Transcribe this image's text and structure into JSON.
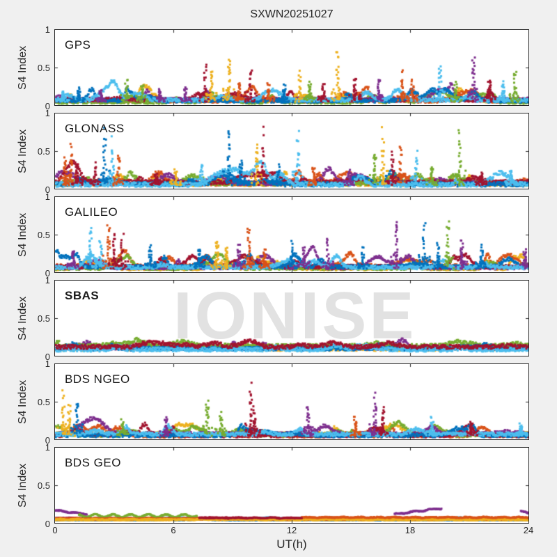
{
  "title": "SXWN20251027",
  "watermark": "IONISE",
  "axis": {
    "xlabel": "UT(h)",
    "ylabel": "S4 Index",
    "xlim": [
      0,
      24
    ],
    "ylim": [
      0,
      1
    ],
    "xtick_labels": [
      "0",
      "6",
      "12",
      "18",
      "24"
    ],
    "ytick_labels": [
      "1",
      "0.5",
      "0"
    ]
  },
  "chart_data": {
    "type": "scatter",
    "title": "SXWN20251027",
    "xlabel": "UT(h)",
    "ylabel": "S4 Index",
    "xlim": [
      0,
      24
    ],
    "ylim": [
      0,
      1
    ],
    "xticks": [
      0,
      6,
      12,
      18,
      24
    ],
    "yticks": [
      0,
      0.5,
      1
    ],
    "grid": false,
    "legend": false,
    "x_unit": "hours UT",
    "palette": [
      "#0072BD",
      "#D95319",
      "#EDB120",
      "#7E2F8E",
      "#77AC30",
      "#4DBEEE",
      "#A2142F"
    ],
    "spike_format": [
      "time_h",
      "s4_peak",
      "palette_index"
    ],
    "segment_format": "t0/t1 hours, v0/v1 S4, c palette index, amp wave amplitude",
    "panels": [
      {
        "label": "GPS",
        "bold": false,
        "baseline": {
          "level": 0.06,
          "bump": 0.12,
          "noise": 0.05
        },
        "spikes": [
          [
            0.4,
            0.18,
            5
          ],
          [
            1.2,
            0.22,
            0
          ],
          [
            2.3,
            0.2,
            3
          ],
          [
            3.6,
            0.32,
            4
          ],
          [
            4.4,
            0.28,
            4
          ],
          [
            5.3,
            0.22,
            3
          ],
          [
            6.6,
            0.25,
            3
          ],
          [
            7.6,
            0.55,
            6
          ],
          [
            7.9,
            0.42,
            2
          ],
          [
            8.8,
            0.62,
            2
          ],
          [
            9.3,
            0.3,
            1
          ],
          [
            9.9,
            0.5,
            6
          ],
          [
            10.8,
            0.28,
            1
          ],
          [
            11.6,
            0.25,
            0
          ],
          [
            12.4,
            0.45,
            2
          ],
          [
            12.9,
            0.3,
            4
          ],
          [
            13.6,
            0.28,
            6
          ],
          [
            14.3,
            0.68,
            2
          ],
          [
            15.2,
            0.35,
            6
          ],
          [
            16.4,
            0.35,
            3
          ],
          [
            17.6,
            0.42,
            1
          ],
          [
            18.1,
            0.33,
            1
          ],
          [
            19.5,
            0.55,
            5
          ],
          [
            20.3,
            0.3,
            4
          ],
          [
            21.2,
            0.65,
            3
          ],
          [
            22.0,
            0.35,
            6
          ],
          [
            22.7,
            0.3,
            5
          ],
          [
            23.3,
            0.45,
            4
          ]
        ]
      },
      {
        "label": "GLONASS",
        "bold": false,
        "baseline": {
          "level": 0.07,
          "bump": 0.13,
          "noise": 0.06
        },
        "spikes": [
          [
            0.5,
            0.4,
            1
          ],
          [
            0.8,
            0.55,
            1
          ],
          [
            1.1,
            0.35,
            6
          ],
          [
            2.0,
            0.32,
            6
          ],
          [
            2.5,
            0.75,
            0
          ],
          [
            2.9,
            0.62,
            5
          ],
          [
            3.2,
            0.45,
            1
          ],
          [
            5.1,
            0.2,
            6
          ],
          [
            6.1,
            0.25,
            2
          ],
          [
            7.4,
            0.3,
            5
          ],
          [
            8.8,
            0.75,
            0
          ],
          [
            9.4,
            0.35,
            0
          ],
          [
            10.2,
            0.55,
            2
          ],
          [
            10.5,
            0.72,
            6
          ],
          [
            11.3,
            0.3,
            0
          ],
          [
            12.3,
            0.7,
            5
          ],
          [
            13.1,
            0.3,
            1
          ],
          [
            14.9,
            0.25,
            3
          ],
          [
            16.2,
            0.5,
            4
          ],
          [
            16.6,
            0.72,
            2
          ],
          [
            17.1,
            0.45,
            6
          ],
          [
            17.5,
            0.55,
            1
          ],
          [
            18.3,
            0.45,
            5
          ],
          [
            19.1,
            0.3,
            4
          ],
          [
            20.5,
            0.72,
            4
          ],
          [
            21.6,
            0.22,
            6
          ],
          [
            23.1,
            0.25,
            5
          ]
        ]
      },
      {
        "label": "GALILEO",
        "bold": false,
        "baseline": {
          "level": 0.07,
          "bump": 0.13,
          "noise": 0.05
        },
        "spikes": [
          [
            0.9,
            0.3,
            3
          ],
          [
            1.8,
            0.55,
            5
          ],
          [
            2.3,
            0.4,
            5
          ],
          [
            2.7,
            0.65,
            1
          ],
          [
            3.0,
            0.5,
            6
          ],
          [
            3.4,
            0.45,
            6
          ],
          [
            4.8,
            0.35,
            0
          ],
          [
            7.3,
            0.32,
            0
          ],
          [
            8.2,
            0.42,
            2
          ],
          [
            8.7,
            0.35,
            2
          ],
          [
            9.3,
            0.35,
            3
          ],
          [
            9.8,
            0.6,
            1
          ],
          [
            10.6,
            0.3,
            1
          ],
          [
            12.0,
            0.38,
            0
          ],
          [
            12.6,
            0.35,
            3
          ],
          [
            13.8,
            0.45,
            3
          ],
          [
            15.6,
            0.32,
            0
          ],
          [
            17.3,
            0.72,
            3
          ],
          [
            18.7,
            0.65,
            0
          ],
          [
            19.4,
            0.35,
            0
          ],
          [
            19.9,
            0.68,
            4
          ],
          [
            20.6,
            0.4,
            3
          ],
          [
            21.6,
            0.35,
            0
          ],
          [
            23.8,
            0.3,
            3
          ]
        ]
      },
      {
        "label": "SBAS",
        "bold": true,
        "baseline": {
          "level": 0.1,
          "bump": 0.05,
          "noise": 0.055,
          "colors": [
            2,
            3,
            4,
            0,
            5,
            6
          ]
        },
        "spikes": []
      },
      {
        "label": "BDS NGEO",
        "bold": false,
        "baseline": {
          "level": 0.06,
          "bump": 0.1,
          "noise": 0.05
        },
        "spikes": [
          [
            0.4,
            0.6,
            2
          ],
          [
            0.7,
            0.45,
            2
          ],
          [
            1.1,
            0.55,
            0
          ],
          [
            3.4,
            0.25,
            4
          ],
          [
            5.6,
            0.3,
            3
          ],
          [
            7.7,
            0.5,
            4
          ],
          [
            8.4,
            0.35,
            4
          ],
          [
            9.9,
            0.7,
            6
          ],
          [
            10.1,
            0.4,
            6
          ],
          [
            12.8,
            0.45,
            3
          ],
          [
            15.2,
            0.3,
            1
          ],
          [
            16.2,
            0.55,
            3
          ],
          [
            16.6,
            0.4,
            6
          ],
          [
            19.1,
            0.28,
            5
          ],
          [
            21.1,
            0.25,
            6
          ],
          [
            23.6,
            0.2,
            5
          ]
        ]
      },
      {
        "label": "BDS GEO",
        "bold": false,
        "baseline": {
          "level": 0.05,
          "bump": 0.01,
          "noise": 0.012,
          "colors": [
            5,
            0,
            6,
            2,
            1
          ]
        },
        "spikes": [],
        "segments": [
          {
            "t0": 0.0,
            "t1": 1.6,
            "v0": 0.17,
            "v1": 0.12,
            "c": 3,
            "amp": 0.006
          },
          {
            "t0": 17.2,
            "t1": 19.6,
            "v0": 0.12,
            "v1": 0.2,
            "c": 3,
            "amp": 0.008
          },
          {
            "t0": 23.6,
            "t1": 24.0,
            "v0": 0.16,
            "v1": 0.14,
            "c": 3,
            "amp": 0.004
          },
          {
            "t0": 1.2,
            "t1": 7.2,
            "v0": 0.1,
            "v1": 0.1,
            "c": 4,
            "amp": 0.018
          },
          {
            "t0": 0.0,
            "t1": 24.0,
            "v0": 0.062,
            "v1": 0.062,
            "c": 1,
            "amp": 0.004
          },
          {
            "t0": 0.0,
            "t1": 24.0,
            "v0": 0.05,
            "v1": 0.05,
            "c": 2,
            "amp": 0.004
          },
          {
            "t0": 12.5,
            "t1": 24.0,
            "v0": 0.078,
            "v1": 0.078,
            "c": 1,
            "amp": 0.004
          },
          {
            "t0": 7.3,
            "t1": 12.5,
            "v0": 0.07,
            "v1": 0.07,
            "c": 6,
            "amp": 0.003
          }
        ]
      }
    ]
  }
}
